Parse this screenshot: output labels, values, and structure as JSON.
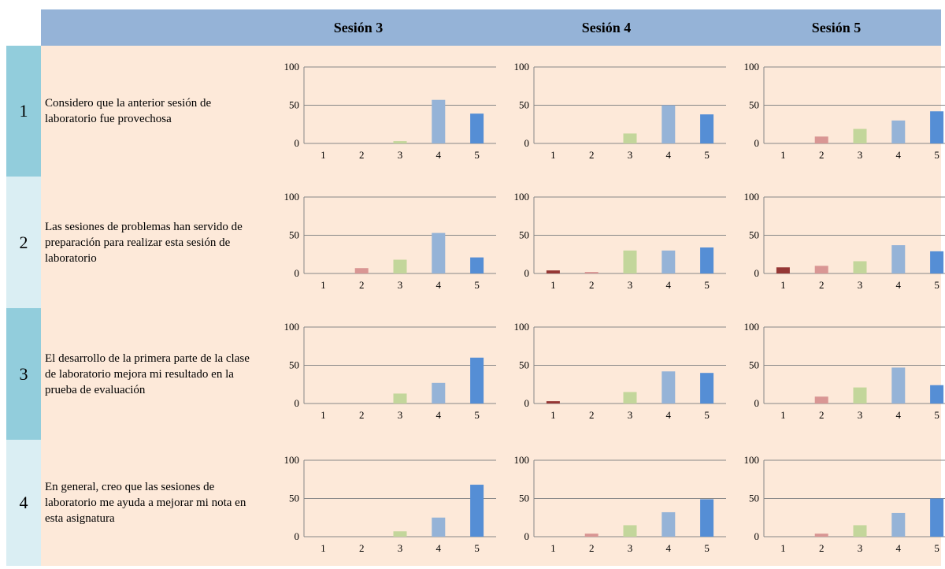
{
  "header": {
    "sessions": [
      "Sesión 3",
      "Sesión 4",
      "Sesión 5"
    ]
  },
  "rows": [
    {
      "number": "1",
      "question": "Considero que la anterior sesión de laboratorio fue provechosa"
    },
    {
      "number": "2",
      "question": "Las sesiones de problemas han servido de preparación para realizar esta sesión de laboratorio"
    },
    {
      "number": "3",
      "question": "El desarrollo de la primera parte de la clase de laboratorio mejora mi resultado en la prueba de evaluación"
    },
    {
      "number": "4",
      "question": "En general, creo que las sesiones de laboratorio me ayuda a mejorar mi nota en esta asignatura"
    }
  ],
  "colors": {
    "bars": [
      "#953735",
      "#d99694",
      "#c3d69b",
      "#95b3d7",
      "#558ed5"
    ],
    "gridline": "#878787",
    "header_bg": "#95b3d7",
    "content_bg": "#fde9d9",
    "num_dark": "#92cddc",
    "num_light": "#daeef3"
  },
  "chart_data": [
    {
      "type": "bar",
      "row": 1,
      "session": "Sesión 3",
      "categories": [
        "1",
        "2",
        "3",
        "4",
        "5"
      ],
      "values": [
        0,
        0,
        3,
        57,
        39
      ],
      "ylim": [
        0,
        100
      ],
      "yticks": [
        "0",
        "50",
        "100"
      ]
    },
    {
      "type": "bar",
      "row": 1,
      "session": "Sesión 4",
      "categories": [
        "1",
        "2",
        "3",
        "4",
        "5"
      ],
      "values": [
        0,
        0,
        13,
        50,
        38
      ],
      "ylim": [
        0,
        100
      ],
      "yticks": [
        "0",
        "50",
        "100"
      ]
    },
    {
      "type": "bar",
      "row": 1,
      "session": "Sesión 5",
      "categories": [
        "1",
        "2",
        "3",
        "4",
        "5"
      ],
      "values": [
        0,
        9,
        19,
        30,
        42
      ],
      "ylim": [
        0,
        100
      ],
      "yticks": [
        "0",
        "50",
        "100"
      ]
    },
    {
      "type": "bar",
      "row": 2,
      "session": "Sesión 3",
      "categories": [
        "1",
        "2",
        "3",
        "4",
        "5"
      ],
      "values": [
        0,
        7,
        18,
        53,
        21
      ],
      "ylim": [
        0,
        100
      ],
      "yticks": [
        "0",
        "50",
        "100"
      ]
    },
    {
      "type": "bar",
      "row": 2,
      "session": "Sesión 4",
      "categories": [
        "1",
        "2",
        "3",
        "4",
        "5"
      ],
      "values": [
        4,
        2,
        30,
        30,
        34
      ],
      "ylim": [
        0,
        100
      ],
      "yticks": [
        "0",
        "50",
        "100"
      ]
    },
    {
      "type": "bar",
      "row": 2,
      "session": "Sesión 5",
      "categories": [
        "1",
        "2",
        "3",
        "4",
        "5"
      ],
      "values": [
        8,
        10,
        16,
        37,
        29
      ],
      "ylim": [
        0,
        100
      ],
      "yticks": [
        "0",
        "50",
        "100"
      ]
    },
    {
      "type": "bar",
      "row": 3,
      "session": "Sesión 3",
      "categories": [
        "1",
        "2",
        "3",
        "4",
        "5"
      ],
      "values": [
        0,
        0,
        13,
        27,
        60
      ],
      "ylim": [
        0,
        100
      ],
      "yticks": [
        "0",
        "50",
        "100"
      ]
    },
    {
      "type": "bar",
      "row": 3,
      "session": "Sesión 4",
      "categories": [
        "1",
        "2",
        "3",
        "4",
        "5"
      ],
      "values": [
        3,
        0,
        15,
        42,
        40
      ],
      "ylim": [
        0,
        100
      ],
      "yticks": [
        "0",
        "50",
        "100"
      ]
    },
    {
      "type": "bar",
      "row": 3,
      "session": "Sesión 5",
      "categories": [
        "1",
        "2",
        "3",
        "4",
        "5"
      ],
      "values": [
        0,
        9,
        21,
        47,
        24
      ],
      "ylim": [
        0,
        100
      ],
      "yticks": [
        "0",
        "50",
        "100"
      ]
    },
    {
      "type": "bar",
      "row": 4,
      "session": "Sesión 3",
      "categories": [
        "1",
        "2",
        "3",
        "4",
        "5"
      ],
      "values": [
        0,
        0,
        7,
        25,
        68
      ],
      "ylim": [
        0,
        100
      ],
      "yticks": [
        "0",
        "50",
        "100"
      ]
    },
    {
      "type": "bar",
      "row": 4,
      "session": "Sesión 4",
      "categories": [
        "1",
        "2",
        "3",
        "4",
        "5"
      ],
      "values": [
        0,
        4,
        15,
        32,
        49
      ],
      "ylim": [
        0,
        100
      ],
      "yticks": [
        "0",
        "50",
        "100"
      ]
    },
    {
      "type": "bar",
      "row": 4,
      "session": "Sesión 5",
      "categories": [
        "1",
        "2",
        "3",
        "4",
        "5"
      ],
      "values": [
        0,
        4,
        15,
        31,
        50
      ],
      "ylim": [
        0,
        100
      ],
      "yticks": [
        "0",
        "50",
        "100"
      ]
    }
  ]
}
